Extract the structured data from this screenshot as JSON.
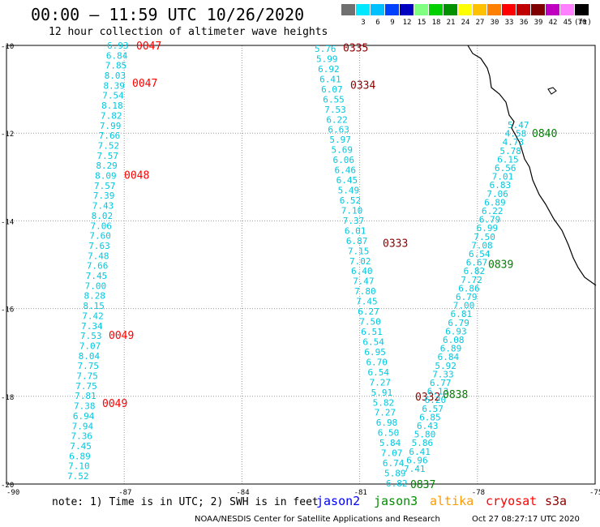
{
  "header": {
    "title": "00:00 – 11:59 UTC 10/26/2020",
    "subtitle": "12 hour collection of altimeter wave heights"
  },
  "legend": {
    "unit_label": "(ft)",
    "items": [
      {
        "label": "",
        "color": "#707070"
      },
      {
        "label": "3",
        "color": "#00e8ff"
      },
      {
        "label": "6",
        "color": "#00c0ff"
      },
      {
        "label": "9",
        "color": "#0040ff"
      },
      {
        "label": "12",
        "color": "#0000c0"
      },
      {
        "label": "15",
        "color": "#80ff80"
      },
      {
        "label": "18",
        "color": "#00d000"
      },
      {
        "label": "21",
        "color": "#009000"
      },
      {
        "label": "24",
        "color": "#ffff00"
      },
      {
        "label": "27",
        "color": "#ffc000"
      },
      {
        "label": "30",
        "color": "#ff8000"
      },
      {
        "label": "33",
        "color": "#ff0000"
      },
      {
        "label": "36",
        "color": "#c00000"
      },
      {
        "label": "39",
        "color": "#800000"
      },
      {
        "label": "42",
        "color": "#c000c0"
      },
      {
        "label": "45",
        "color": "#ff80ff"
      },
      {
        "label": "70",
        "color": "#000000"
      }
    ]
  },
  "map": {
    "lon_ticks": [
      "-90",
      "-87",
      "-84",
      "-81",
      "-78",
      "-75"
    ],
    "lat_ticks": [
      "-10",
      "-12",
      "-14",
      "-16",
      "-18",
      "-20"
    ],
    "colors": {
      "wave": "#00c8e0",
      "cryosat": "#ff0000",
      "s3a": "#8b0000",
      "jason3": "#008000",
      "coast": "#000000",
      "grid": "#9a9a9a"
    },
    "tracks": [
      {
        "id": "track-0047",
        "satellite": "cryosat",
        "time_labels": [
          {
            "text": "0047",
            "lat": -10.0
          },
          {
            "text": "0047",
            "lat": -10.85
          },
          {
            "text": "0048",
            "lat": -12.95
          },
          {
            "text": "0049",
            "lat": -16.6
          },
          {
            "text": "0049",
            "lat": -18.15
          }
        ],
        "values": [
          "6.93",
          "6.84",
          "7.85",
          "8.03",
          "8.39",
          "7.54",
          "8.18",
          "7.82",
          "7.99",
          "7.66",
          "7.52",
          "7.57",
          "8.29",
          "8.09",
          "7.57",
          "7.39",
          "7.43",
          "8.02",
          "7.06",
          "7.60",
          "7.63",
          "7.48",
          "7.66",
          "7.45",
          "7.00",
          "8.28",
          "8.15",
          "7.42",
          "7.34",
          "7.53",
          "7.07",
          "8.04",
          "7.75",
          "7.75",
          "7.75",
          "7.81",
          "7.38",
          "6.94",
          "7.94",
          "7.36",
          "7.45",
          "6.89",
          "7.10",
          "7.52"
        ]
      },
      {
        "id": "track-0333",
        "satellite": "s3a",
        "time_labels": [
          {
            "text": "0335",
            "lat": -10.05
          },
          {
            "text": "0334",
            "lat": -10.9
          },
          {
            "text": "0333",
            "lat": -14.5
          },
          {
            "text": "0332",
            "lat": -18.0
          }
        ],
        "values": [
          "5.76",
          "5.99",
          "6.92",
          "6.41",
          "6.07",
          "6.55",
          "7.53",
          "6.22",
          "6.63",
          "5.97",
          "5.69",
          "6.06",
          "6.46",
          "6.45",
          "5.49",
          "6.52",
          "7.10",
          "7.37",
          "6.01",
          "6.87",
          "7.15",
          "7.02",
          "6.40",
          "7.47",
          "7.80",
          "7.45",
          "6.27",
          "7.50",
          "6.51",
          "6.54",
          "6.95",
          "6.70",
          "6.54",
          "7.27",
          "5.91",
          "5.82",
          "7.27",
          "6.98",
          "6.50",
          "5.84",
          "7.07",
          "6.74",
          "5.89",
          "6.82"
        ]
      },
      {
        "id": "track-0838",
        "satellite": "jason3",
        "time_labels": [
          {
            "text": "0840",
            "lat": -12.0
          },
          {
            "text": "0839",
            "lat": -14.98
          },
          {
            "text": "0838",
            "lat": -17.95
          },
          {
            "text": "0837",
            "lat": -20.0
          }
        ],
        "values": [
          "5.47",
          "4.58",
          "4.73",
          "5.78",
          "6.15",
          "6.56",
          "7.01",
          "6.83",
          "7.06",
          "6.89",
          "6.22",
          "6.79",
          "6.99",
          "7.50",
          "7.08",
          "6.54",
          "6.67",
          "6.82",
          "7.72",
          "6.86",
          "6.79",
          "7.00",
          "6.81",
          "6.79",
          "6.93",
          "6.08",
          "6.89",
          "6.84",
          "5.92",
          "7.33",
          "6.77",
          "6.13",
          "6.20",
          "6.57",
          "6.85",
          "6.43",
          "5.80",
          "5.86",
          "6.41",
          "6.96",
          "7.41"
        ]
      }
    ]
  },
  "footer": {
    "note": "note: 1) Time is in UTC; 2) SWH is in feet",
    "satellites": [
      {
        "name": "jason2",
        "color": "#0000ff"
      },
      {
        "name": "jason3",
        "color": "#009000"
      },
      {
        "name": "altika",
        "color": "#ff9900"
      },
      {
        "name": "cryosat",
        "color": "#ff0000"
      },
      {
        "name": "s3a",
        "color": "#8b0000"
      }
    ],
    "credit": "NOAA/NESDIS Center for Satellite Applications and Research",
    "timestamp": "Oct 27 08:27:17 UTC 2020"
  }
}
